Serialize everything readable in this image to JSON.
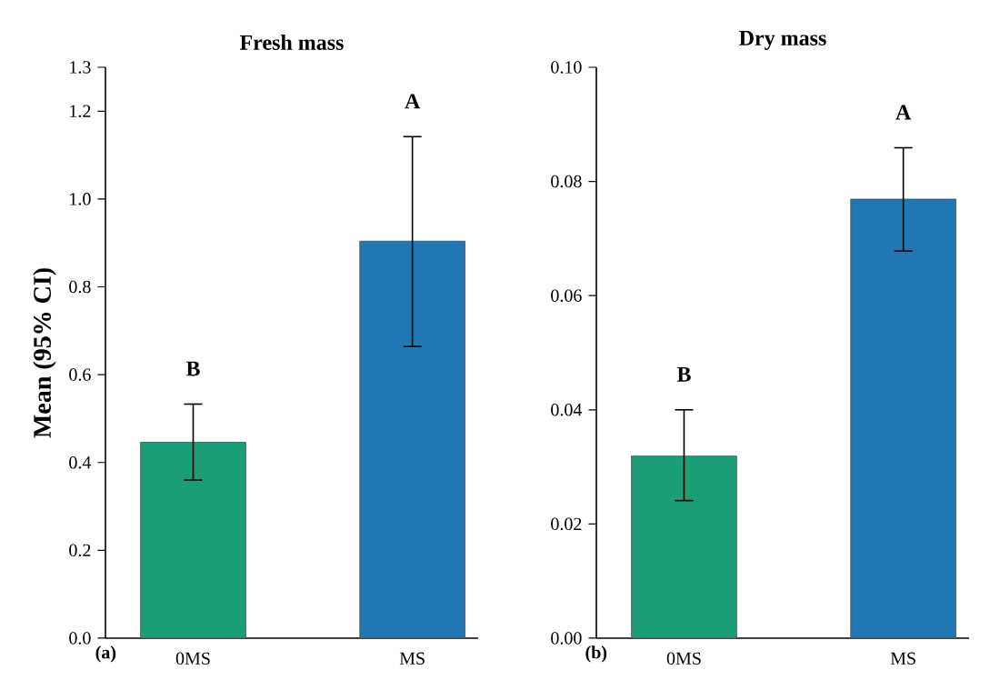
{
  "chart_data": [
    {
      "type": "bar",
      "title": "Fresh mass",
      "ylabel": "Mean (95% CI)",
      "categories": [
        "0MS",
        "MS"
      ],
      "values": [
        0.446,
        0.904
      ],
      "colors": [
        "#1b9e77",
        "#2077b4"
      ],
      "errors": [
        [
          0.36,
          0.533
        ],
        [
          0.664,
          1.142
        ]
      ],
      "ylim": [
        0,
        1.3
      ],
      "yticks": [
        {
          "value": 0,
          "label": "0.0"
        },
        {
          "value": 0.2,
          "label": "0.2"
        },
        {
          "value": 0.4,
          "label": "0.4"
        },
        {
          "value": 0.6,
          "label": "0.6"
        },
        {
          "value": 0.8,
          "label": "0.8"
        },
        {
          "value": 1.0,
          "label": "1.0"
        },
        {
          "value": 1.2,
          "label": "1.2"
        },
        {
          "value": 1.3,
          "label": "1.3"
        }
      ],
      "annotations": [
        {
          "text": "B",
          "x": "0MS",
          "y": 0.533
        },
        {
          "text": "A",
          "x": "MS",
          "y": 1.142
        },
        "(a)"
      ]
    },
    {
      "type": "bar",
      "title": "Dry mass",
      "categories": [
        "0MS",
        "MS"
      ],
      "values": [
        0.0319,
        0.0769
      ],
      "colors": [
        "#1b9e77",
        "#2077b4"
      ],
      "errors": [
        [
          0.0241,
          0.04
        ],
        [
          0.0678,
          0.0859
        ]
      ],
      "ylim": [
        0,
        0.1
      ],
      "yticks": [
        {
          "value": 0,
          "label": "0.00"
        },
        {
          "value": 0.02,
          "label": "0.02"
        },
        {
          "value": 0.04,
          "label": "0.04"
        },
        {
          "value": 0.06,
          "label": "0.06"
        },
        {
          "value": 0.08,
          "label": "0.08"
        },
        {
          "value": 0.1,
          "label": "0.10"
        }
      ],
      "annotations": [
        {
          "text": "B",
          "x": "0MS",
          "y": 0.04
        },
        {
          "text": "A",
          "x": "MS",
          "y": 0.0859
        },
        "(b)"
      ]
    }
  ]
}
